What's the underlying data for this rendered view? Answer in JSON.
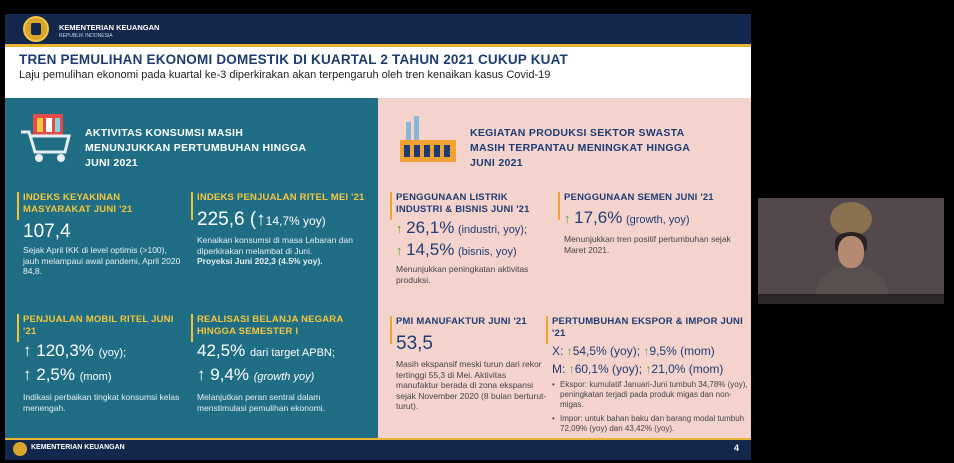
{
  "org": {
    "name": "KEMENTERIAN KEUANGAN",
    "sub": "REPUBLIK INDONESIA"
  },
  "header": {
    "title": "TREN PEMULIHAN EKONOMI DOMESTIK DI KUARTAL 2 TAHUN 2021 CUKUP KUAT",
    "subtitle": "Laju pemulihan ekonomi pada kuartal ke-3 diperkirakan akan terpengaruh oleh tren kenaikan kasus Covid-19"
  },
  "left": {
    "title": "AKTIVITAS KONSUMSI MASIH MENUNJUKKAN PERTUMBUHAN HINGGA JUNI 2021",
    "ikk": {
      "label": "INDEKS KEYAKINAN MASYARAKAT JUNI '21",
      "value": "107,4",
      "desc": "Sejak April IKK di level optimis (>100), jauh melampaui awal pandemi, April 2020 84,8."
    },
    "ritel": {
      "label": "INDEKS PENJUALAN RITEL MEI '21",
      "value": "225,6",
      "change_open": "(",
      "arrow": "↑",
      "change": "14,7% yoy)",
      "desc": "Kenaikan konsumsi di masa Lebaran dan diperkirakan melambat di Juni.",
      "proj": "Proyeksi Juni 202,3 (4.5% yoy)."
    },
    "mobil": {
      "label": "PENJUALAN MOBIL RITEL JUNI '21",
      "arrow1": "↑",
      "v1": "120,3%",
      "u1": "(yoy);",
      "arrow2": "↑",
      "v2": "2,5%",
      "u2": "(mom)",
      "desc": "Indikasi perbaikan tingkat konsumsi kelas menengah."
    },
    "belanja": {
      "label": "REALISASI BELANJA NEGARA HINGGA SEMESTER I",
      "v1": "42,5%",
      "u1": "dari target APBN;",
      "arrow2": "↑",
      "v2": "9,4%",
      "u2": "(growth yoy)",
      "desc": "Melanjutkan peran sentral dalam menstimulasi pemulihan ekonomi."
    }
  },
  "right": {
    "title": "KEGIATAN PRODUKSI SEKTOR SWASTA MASIH TERPANTAU MENINGKAT HINGGA JUNI 2021",
    "listrik": {
      "label": "PENGGUNAAN LISTRIK INDUSTRI & BISNIS JUNI '21",
      "arrow1": "↑",
      "v1": "26,1%",
      "u1": "(industri, yoy);",
      "arrow2": "↑",
      "v2": "14,5%",
      "u2": "(bisnis, yoy)",
      "desc": "Menunjukkan peningkatan aktivitas produksi."
    },
    "semen": {
      "label": "PENGGUNAAN SEMEN JUNI '21",
      "arrow1": "↑",
      "v1": "17,6%",
      "u1": "(growth, yoy)",
      "desc": "Menunjukkan tren positif pertumbuhan sejak Maret 2021."
    },
    "pmi": {
      "label": "PMI MANUFAKTUR JUNI '21",
      "value": "53,5",
      "desc": "Masih ekspansif meski turun dari rekor tertinggi 55,3 di Mei. Aktivitas manufaktur berada di zona ekspansi sejak November 2020 (8 bulan berturut-turut)."
    },
    "ekspor": {
      "label": "PERTUMBUHAN EKSPOR & IMPOR JUNI '21",
      "x_prefix": "X:",
      "x_arrow1": "↑",
      "x_v1": "54,5% (yoy);",
      "x_arrow2": "↑",
      "x_v2": "9,5% (mom)",
      "m_prefix": "M:",
      "m_arrow1": "↑",
      "m_v1": "60,1% (yoy);",
      "m_arrow2": "↑",
      "m_v2": "21,0% (mom)",
      "bullet1": "Ekspor: kumulatif Januari-Juni tumbuh 34,78% (yoy), peningkatan terjadi pada produk migas dan non-migas.",
      "bullet2": "Impor: untuk bahan baku dan barang modal tumbuh 72,09% (yoy) dan 43,42% (yoy)."
    }
  },
  "footer": {
    "org": "KEMENTERIAN KEUANGAN",
    "page": "4"
  },
  "colors": {
    "navy": "#1e3c74",
    "teal": "#1f6e86",
    "pink": "#f5d3cd",
    "gold": "#e9b431",
    "green": "#4caa3a"
  }
}
